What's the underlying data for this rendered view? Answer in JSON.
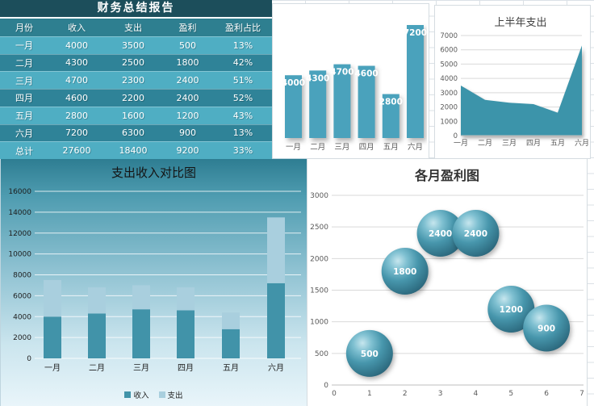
{
  "report_table": {
    "title": "财务总结报告",
    "columns": [
      "月份",
      "收入",
      "支出",
      "盈利",
      "盈利占比"
    ],
    "rows": [
      [
        "一月",
        "4000",
        "3500",
        "500",
        "13%"
      ],
      [
        "二月",
        "4300",
        "2500",
        "1800",
        "42%"
      ],
      [
        "三月",
        "4700",
        "2300",
        "2400",
        "51%"
      ],
      [
        "四月",
        "4600",
        "2200",
        "2400",
        "52%"
      ],
      [
        "五月",
        "2800",
        "1600",
        "1200",
        "43%"
      ],
      [
        "六月",
        "7200",
        "6300",
        "900",
        "13%"
      ],
      [
        "总计",
        "27600",
        "18400",
        "9200",
        "33%"
      ]
    ],
    "colors": {
      "title_bg": "#1C4E5B",
      "header_bg": "#2E7F90",
      "row_light": "#4FAEC3",
      "row_dark": "#2F8398"
    }
  },
  "chart_data": [
    {
      "id": "income_bars",
      "type": "bar",
      "title": "",
      "categories": [
        "一月",
        "二月",
        "三月",
        "四月",
        "五月",
        "六月"
      ],
      "values": [
        4000,
        4300,
        4700,
        4600,
        2800,
        7200
      ],
      "data_labels": [
        "4000",
        "4300",
        "4700",
        "4600",
        "2800",
        "7200"
      ],
      "bar_color": "#4AA2BC",
      "ylim": [
        0,
        7200
      ],
      "grid": false,
      "legend": "none"
    },
    {
      "id": "halfyear_expense_area",
      "type": "area",
      "title": "上半年支出",
      "categories": [
        "一月",
        "二月",
        "三月",
        "四月",
        "五月",
        "六月"
      ],
      "values": [
        3500,
        2500,
        2300,
        2200,
        1600,
        6300
      ],
      "fill_color": "#3C94AA",
      "ylim": [
        0,
        7000
      ],
      "ytick_step": 1000,
      "yticks": [
        "0",
        "1000",
        "2000",
        "3000",
        "4000",
        "5000",
        "6000",
        "7000"
      ],
      "grid": true,
      "legend": "none"
    },
    {
      "id": "income_expense_stacked",
      "type": "bar",
      "stacked": true,
      "title": "支出收入对比图",
      "categories": [
        "一月",
        "二月",
        "三月",
        "四月",
        "五月",
        "六月"
      ],
      "series": [
        {
          "name": "收入",
          "values": [
            4000,
            4300,
            4700,
            4600,
            2800,
            7200
          ],
          "color": "#4193A9"
        },
        {
          "name": "支出",
          "values": [
            3500,
            2500,
            2300,
            2200,
            1600,
            6300
          ],
          "color": "#A9CFDE"
        }
      ],
      "ylim": [
        0,
        16000
      ],
      "ytick_step": 2000,
      "yticks": [
        "0",
        "2000",
        "4000",
        "6000",
        "8000",
        "10000",
        "12000",
        "14000",
        "16000"
      ],
      "grid": true,
      "legend": "bottom"
    },
    {
      "id": "monthly_profit_bubbles",
      "type": "scatter",
      "subtype": "bubble",
      "title": "各月盈利图",
      "points": [
        {
          "x": 1,
          "y": 500,
          "label": "500"
        },
        {
          "x": 2,
          "y": 1800,
          "label": "1800"
        },
        {
          "x": 3,
          "y": 2400,
          "label": "2400"
        },
        {
          "x": 4,
          "y": 2400,
          "label": "2400"
        },
        {
          "x": 5,
          "y": 1200,
          "label": "1200"
        },
        {
          "x": 6,
          "y": 900,
          "label": "900"
        }
      ],
      "xlim": [
        0,
        7
      ],
      "xticks": [
        "0",
        "1",
        "2",
        "3",
        "4",
        "5",
        "6",
        "7"
      ],
      "ylim": [
        0,
        3000
      ],
      "ytick_step": 500,
      "yticks": [
        "0",
        "500",
        "1000",
        "1500",
        "2000",
        "2500",
        "3000"
      ],
      "bubble_color": "#4796AC",
      "grid": true,
      "legend": "none"
    }
  ]
}
